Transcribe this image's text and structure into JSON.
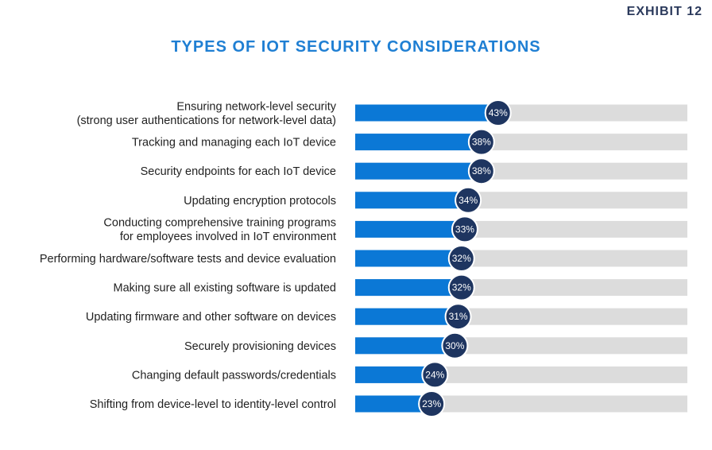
{
  "exhibit_label": "EXHIBIT 12",
  "colors": {
    "bar": "#0b78d6",
    "track": "#dcdcdc",
    "badge": "#1e3560",
    "title": "#1f7fd3"
  },
  "chart_data": {
    "type": "bar",
    "orientation": "horizontal",
    "title": "TYPES OF IOT SECURITY CONSIDERATIONS",
    "xlim": [
      0,
      100
    ],
    "unit": "%",
    "categories": [
      [
        "Ensuring network-level security",
        "(strong user authentications for network-level data)"
      ],
      [
        "Tracking and managing each IoT device"
      ],
      [
        "Security endpoints for each IoT device"
      ],
      [
        "Updating encryption protocols"
      ],
      [
        "Conducting comprehensive training programs",
        "for employees involved in IoT environment"
      ],
      [
        "Performing hardware/software tests and device evaluation"
      ],
      [
        "Making sure all existing software is updated"
      ],
      [
        "Updating firmware and other software on devices"
      ],
      [
        "Securely provisioning devices"
      ],
      [
        "Changing default passwords/credentials"
      ],
      [
        "Shifting from device-level to identity-level control"
      ]
    ],
    "values": [
      43,
      38,
      38,
      34,
      33,
      32,
      32,
      31,
      30,
      24,
      23
    ],
    "data_labels": [
      "43%",
      "38%",
      "38%",
      "34%",
      "33%",
      "32%",
      "32%",
      "31%",
      "30%",
      "24%",
      "23%"
    ]
  }
}
